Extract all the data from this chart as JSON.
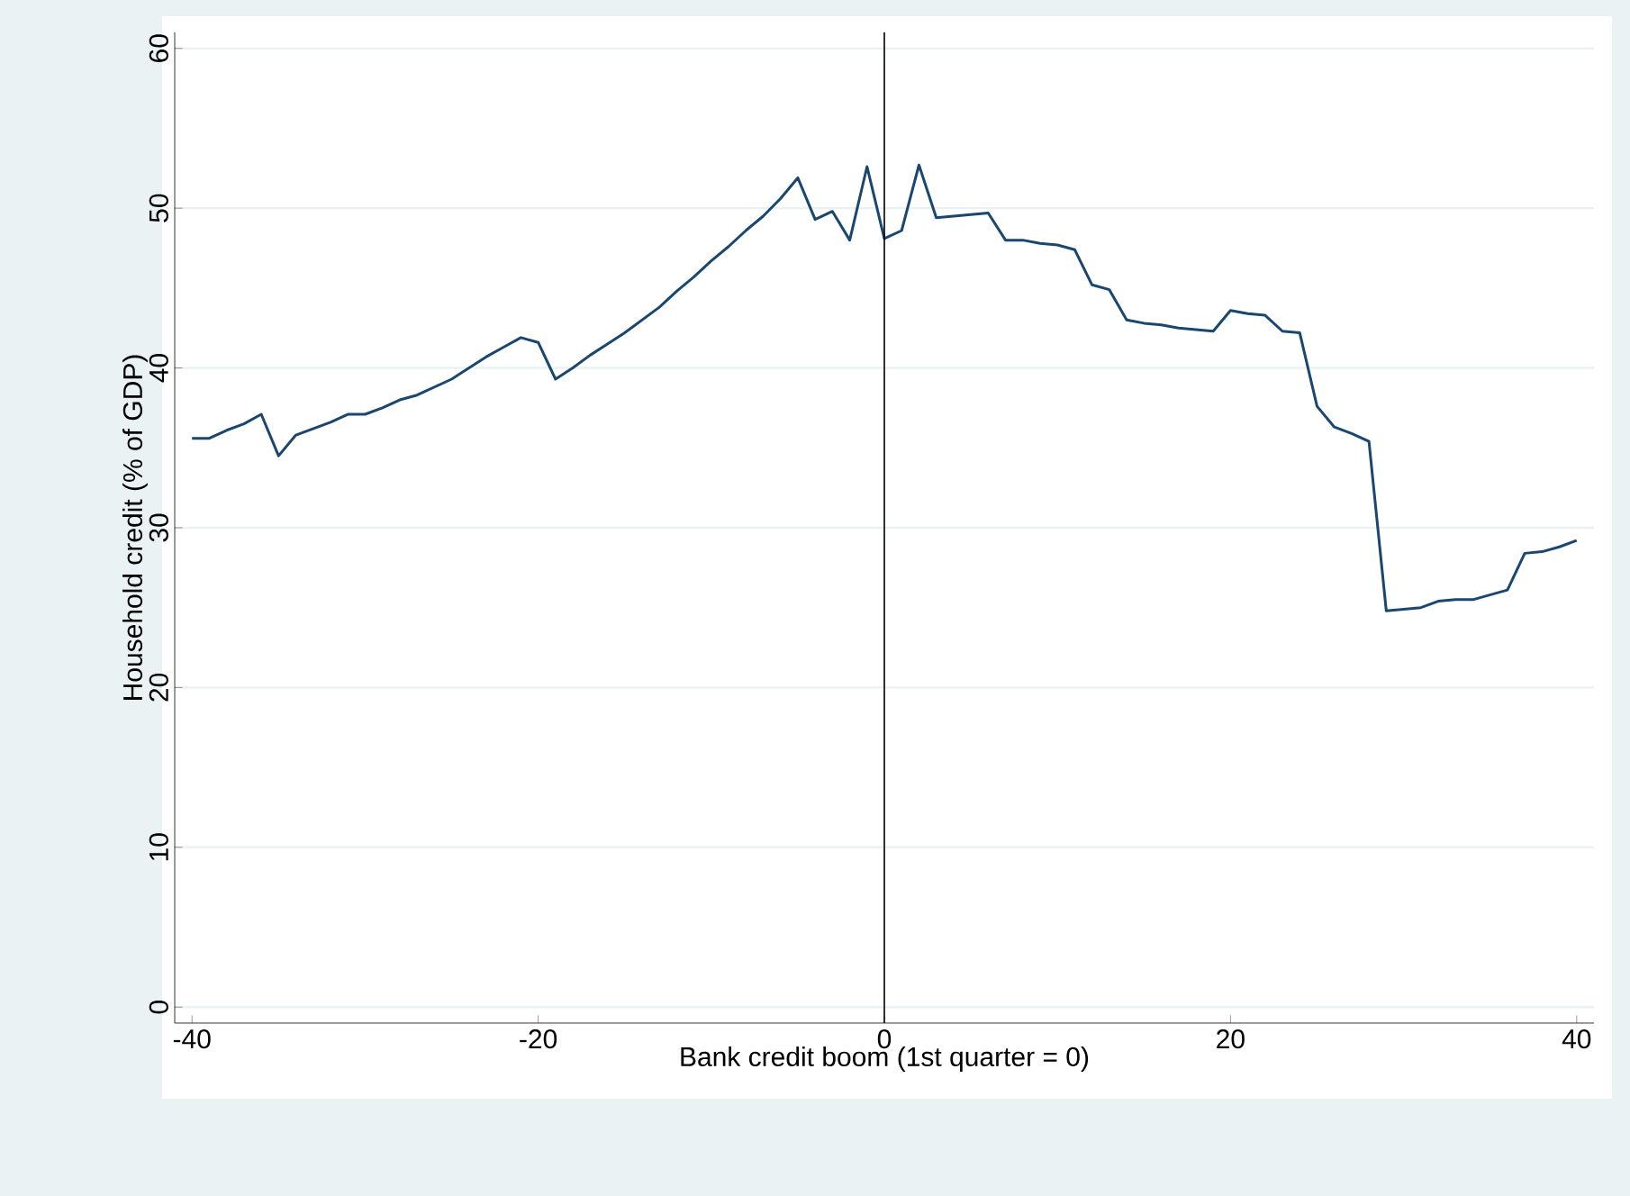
{
  "chart_data": {
    "type": "line",
    "xlabel": "Bank credit boom (1st quarter = 0)",
    "ylabel": "Household credit (% of GDP)",
    "xlim": [
      -41,
      41
    ],
    "ylim": [
      -1,
      61
    ],
    "xticks": [
      -40,
      -20,
      0,
      20,
      40
    ],
    "yticks": [
      0,
      10,
      20,
      30,
      40,
      50,
      60
    ],
    "grid": "y",
    "ref_lines": [
      {
        "axis": "x",
        "value": 0,
        "color": "#000000"
      }
    ],
    "series": [
      {
        "color": "#1a476f",
        "x": [
          -40,
          -39,
          -38,
          -37,
          -36,
          -35,
          -34,
          -33,
          -32,
          -31,
          -30,
          -29,
          -28,
          -27,
          -26,
          -25,
          -24,
          -23,
          -22,
          -21,
          -20,
          -19,
          -18,
          -17,
          -16,
          -15,
          -14,
          -13,
          -12,
          -11,
          -10,
          -9,
          -8,
          -7,
          -6,
          -5,
          -4,
          -3,
          -2,
          -1,
          0,
          1,
          2,
          3,
          4,
          5,
          6,
          7,
          8,
          9,
          10,
          11,
          12,
          13,
          14,
          15,
          16,
          17,
          18,
          19,
          20,
          21,
          22,
          23,
          24,
          25,
          26,
          27,
          28,
          29,
          30,
          31,
          32,
          33,
          34,
          35,
          36,
          37,
          38,
          39,
          40
        ],
        "values": [
          35.6,
          35.6,
          36.1,
          36.5,
          37.1,
          34.5,
          35.8,
          36.2,
          36.6,
          37.1,
          37.1,
          37.5,
          38.0,
          38.3,
          38.8,
          39.3,
          40.0,
          40.7,
          41.3,
          41.9,
          41.6,
          39.3,
          40.0,
          40.8,
          41.5,
          42.2,
          43.0,
          43.8,
          44.8,
          45.7,
          46.7,
          47.6,
          48.6,
          49.5,
          50.6,
          51.9,
          49.3,
          49.8,
          48.0,
          52.6,
          48.1,
          48.6,
          52.7,
          49.4,
          49.5,
          49.6,
          49.7,
          48.0,
          48.0,
          47.8,
          47.7,
          47.4,
          45.2,
          44.9,
          43.0,
          42.8,
          42.7,
          42.5,
          42.4,
          42.3,
          43.6,
          43.4,
          43.3,
          42.3,
          42.2,
          37.6,
          36.3,
          35.9,
          35.4,
          24.8,
          24.9,
          25.0,
          25.4,
          25.5,
          25.5,
          25.8,
          26.1,
          28.4,
          28.5,
          28.8,
          29.2
        ]
      }
    ]
  }
}
